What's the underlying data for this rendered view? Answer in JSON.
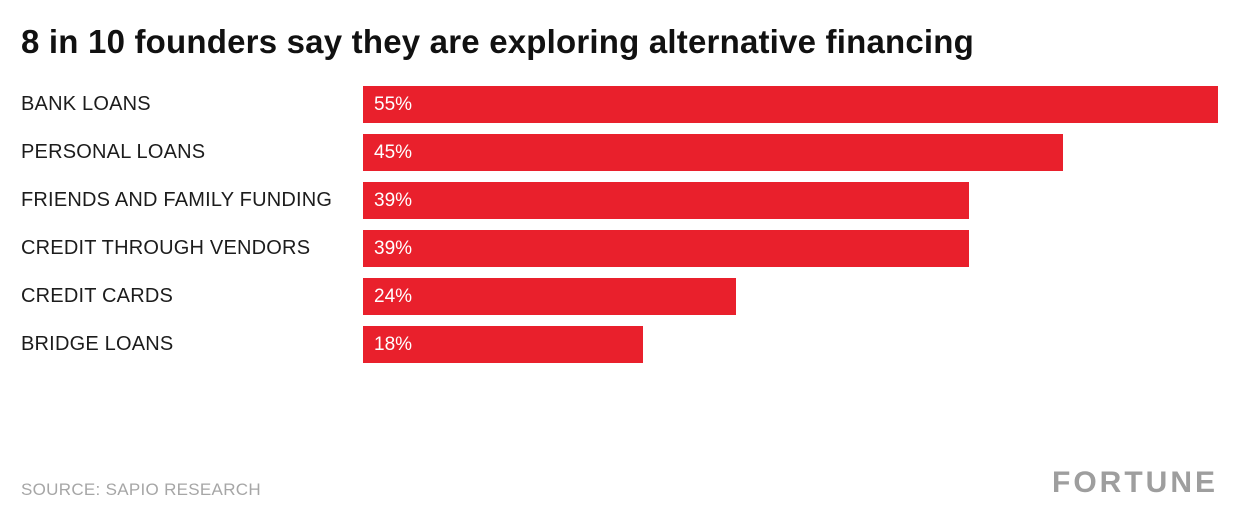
{
  "title": "8 in 10 founders say they are exploring alternative financing",
  "source": "SOURCE: SAPIO RESEARCH",
  "brand": "FORTUNE",
  "colors": {
    "bar": "#e9202c",
    "title": "#111111",
    "label": "#1c1c1c",
    "value_text": "#ffffff",
    "source": "#a6a6a6",
    "brand": "#9e9e9e",
    "background": "#ffffff"
  },
  "chart_data": {
    "type": "bar",
    "orientation": "horizontal",
    "title": "8 in 10 founders say they are exploring alternative financing",
    "categories": [
      "BANK LOANS",
      "PERSONAL LOANS",
      "FRIENDS AND FAMILY FUNDING",
      "CREDIT THROUGH VENDORS",
      "CREDIT CARDS",
      "BRIDGE LOANS"
    ],
    "values": [
      55,
      45,
      39,
      39,
      24,
      18
    ],
    "value_labels": [
      "55%",
      "45%",
      "39%",
      "39%",
      "24%",
      "18%"
    ],
    "unit": "percent",
    "xlim": [
      0,
      55
    ],
    "grid": false,
    "legend": "none",
    "value_label_position": "inside-left",
    "source": "SOURCE: SAPIO RESEARCH"
  }
}
